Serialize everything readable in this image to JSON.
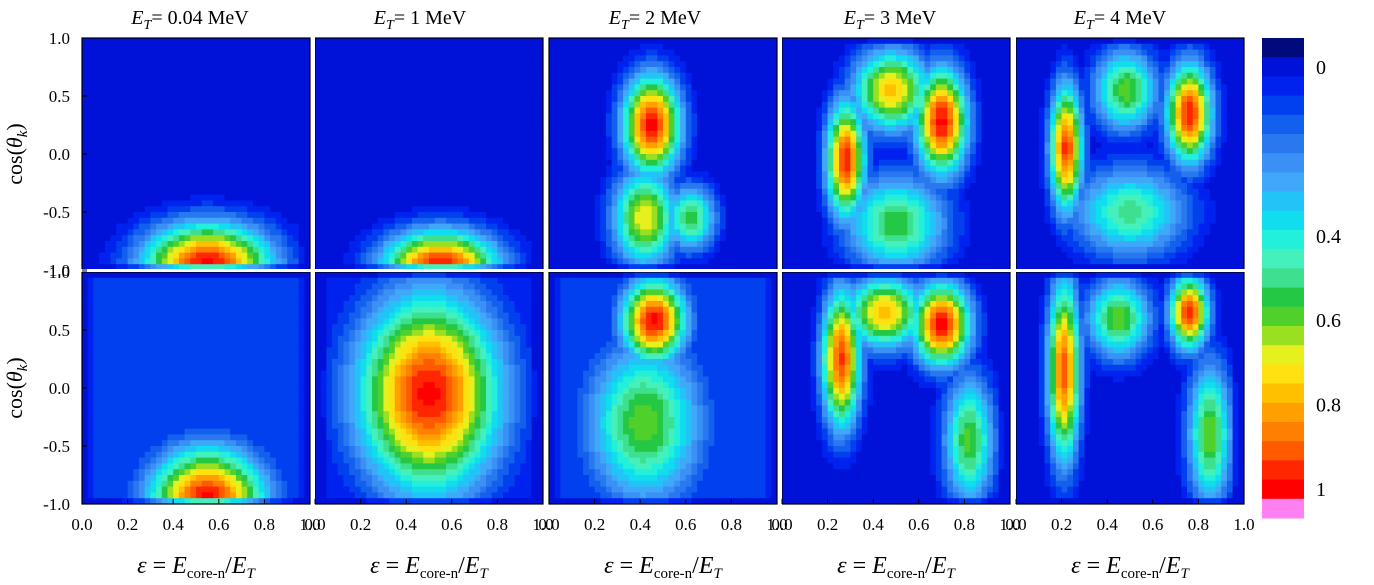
{
  "chart_data": {
    "type": "heatmap",
    "layout": "grid of 2 rows x 5 columns sharing axes",
    "column_titles": [
      {
        "symbol": "E",
        "subscript": "T",
        "value": "= 0.04 MeV"
      },
      {
        "symbol": "E",
        "subscript": "T",
        "value": "= 1 MeV"
      },
      {
        "symbol": "E",
        "subscript": "T",
        "value": "= 2 MeV"
      },
      {
        "symbol": "E",
        "subscript": "T",
        "value": "= 3 MeV"
      },
      {
        "symbol": "E",
        "subscript": "T",
        "value": "= 4 MeV"
      }
    ],
    "ylabel": {
      "prefix": "cos(",
      "symbol": "θ",
      "subscript": "k",
      "suffix": ")"
    },
    "xlabel": {
      "epsilon": "ε",
      "equals": " = ",
      "E": "E",
      "sub1": "core-n",
      "slash": "/",
      "E2": "E",
      "sub2": "T"
    },
    "xlim": [
      0.0,
      1.0
    ],
    "ylim": [
      -1.0,
      1.0
    ],
    "x_ticks": [
      "0.0",
      "0.2",
      "0.4",
      "0.6",
      "0.8",
      "1.0"
    ],
    "y_ticks": [
      "1.0",
      "0.5",
      "0.0",
      "-0.5",
      "-1.0"
    ],
    "colorbar": {
      "range": [
        0,
        1
      ],
      "tick_labels": [
        "0",
        "0.4",
        "0.6",
        "0.8",
        "1"
      ],
      "tick_values": [
        0.0,
        0.4,
        0.6,
        0.8,
        1.0
      ],
      "levels": 22,
      "colors": [
        "#000a7a",
        "#0011d8",
        "#0022ee",
        "#0040ee",
        "#1460ee",
        "#2a78f0",
        "#3a90f4",
        "#40a8f8",
        "#22c4f8",
        "#10ddee",
        "#22f0da",
        "#44f0bc",
        "#3ee090",
        "#24c844",
        "#50d02a",
        "#9ae020",
        "#e6f01c",
        "#ffe010",
        "#ffc000",
        "#ffa000",
        "#ff8000",
        "#ff5a00",
        "#ff2600",
        "#ff0000",
        "#ff80f0"
      ]
    },
    "panels": [
      [
        {
          "peaks": [
            [
              0.55,
              -0.95,
              1.0,
              0.2,
              0.25
            ]
          ],
          "background": 0.06
        },
        {
          "peaks": [
            [
              0.55,
              -0.97,
              1.0,
              0.18,
              0.22
            ]
          ],
          "background": 0.02
        },
        {
          "peaks": [
            [
              0.45,
              0.25,
              1.0,
              0.09,
              0.3
            ],
            [
              0.42,
              -0.55,
              0.72,
              0.1,
              0.3
            ],
            [
              0.62,
              -0.55,
              0.58,
              0.08,
              0.2
            ]
          ],
          "background": 0.05
        },
        {
          "peaks": [
            [
              0.28,
              -0.05,
              0.97,
              0.06,
              0.35
            ],
            [
              0.7,
              0.28,
              1.0,
              0.08,
              0.32
            ],
            [
              0.48,
              0.55,
              0.78,
              0.12,
              0.25
            ],
            [
              0.5,
              -0.6,
              0.58,
              0.16,
              0.3
            ]
          ],
          "background": 0.05
        },
        {
          "peaks": [
            [
              0.22,
              0.05,
              0.95,
              0.05,
              0.38
            ],
            [
              0.76,
              0.35,
              0.98,
              0.07,
              0.3
            ],
            [
              0.48,
              0.55,
              0.62,
              0.1,
              0.25
            ],
            [
              0.5,
              -0.5,
              0.52,
              0.18,
              0.28
            ]
          ],
          "background": 0.05
        }
      ],
      [
        {
          "peaks": [
            [
              0.55,
              -0.97,
              1.0,
              0.18,
              0.32
            ]
          ],
          "background": 0.12
        },
        {
          "peaks": [
            [
              0.5,
              -0.05,
              1.0,
              0.22,
              0.6
            ]
          ],
          "background": 0.1
        },
        {
          "peaks": [
            [
              0.46,
              0.58,
              1.0,
              0.1,
              0.25
            ],
            [
              0.42,
              -0.3,
              0.62,
              0.18,
              0.5
            ]
          ],
          "background": 0.12
        },
        {
          "peaks": [
            [
              0.26,
              0.25,
              0.95,
              0.06,
              0.42
            ],
            [
              0.7,
              0.55,
              1.0,
              0.09,
              0.25
            ],
            [
              0.45,
              0.65,
              0.8,
              0.12,
              0.22
            ],
            [
              0.82,
              -0.45,
              0.6,
              0.08,
              0.4
            ]
          ],
          "background": 0.05
        },
        {
          "peaks": [
            [
              0.21,
              0.15,
              0.92,
              0.05,
              0.55
            ],
            [
              0.76,
              0.65,
              0.98,
              0.06,
              0.22
            ],
            [
              0.45,
              0.6,
              0.62,
              0.1,
              0.25
            ],
            [
              0.85,
              -0.4,
              0.62,
              0.07,
              0.45
            ]
          ],
          "background": 0.05
        }
      ]
    ]
  }
}
